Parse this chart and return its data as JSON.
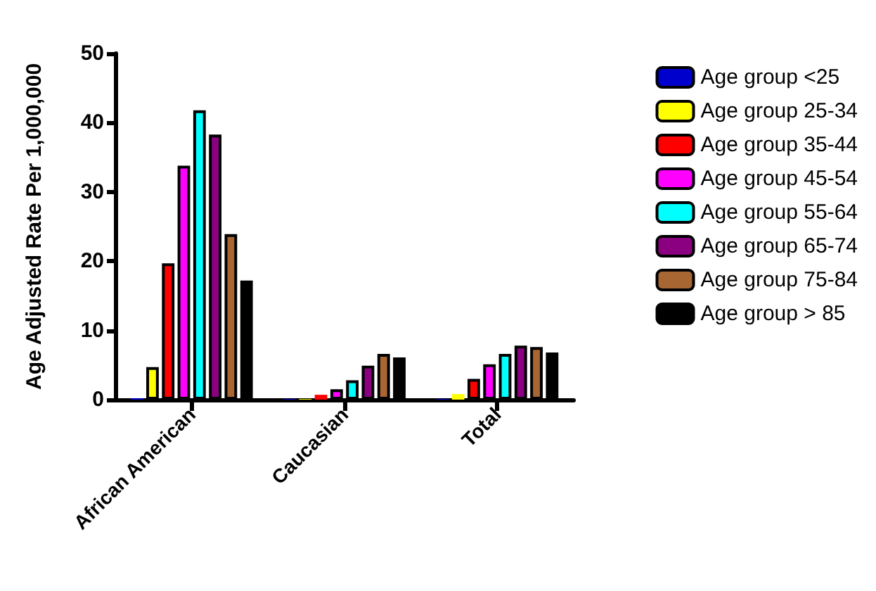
{
  "chart_data": {
    "type": "bar",
    "ylabel": "Age Adjusted Rate Per 1,000,000",
    "categories": [
      "African American",
      "Caucasian",
      "Total"
    ],
    "ylim": [
      0,
      50
    ],
    "yticks": [
      0,
      10,
      20,
      30,
      40,
      50
    ],
    "grid": false,
    "legend": "right",
    "series": [
      {
        "name": "Age group <25",
        "color": "#0000cc",
        "values": [
          0.2,
          0.1,
          0.1
        ]
      },
      {
        "name": "Age group 25-34",
        "color": "#ffff00",
        "values": [
          4.7,
          0.1,
          0.8
        ]
      },
      {
        "name": "Age group 35-44",
        "color": "#ff0000",
        "values": [
          19.7,
          0.7,
          3.0
        ]
      },
      {
        "name": "Age group 45-54",
        "color": "#ff00ff",
        "values": [
          33.8,
          1.5,
          5.1
        ]
      },
      {
        "name": "Age group 55-64",
        "color": "#00ffff",
        "values": [
          41.8,
          2.8,
          6.6
        ]
      },
      {
        "name": "Age group 65-74",
        "color": "#8b0080",
        "values": [
          38.3,
          4.9,
          7.8
        ]
      },
      {
        "name": "Age group 75-84",
        "color": "#a86632",
        "values": [
          23.9,
          6.6,
          7.6
        ]
      },
      {
        "name": "Age group > 85",
        "color": "#000000",
        "values": [
          17.2,
          6.1,
          6.8
        ]
      }
    ]
  }
}
